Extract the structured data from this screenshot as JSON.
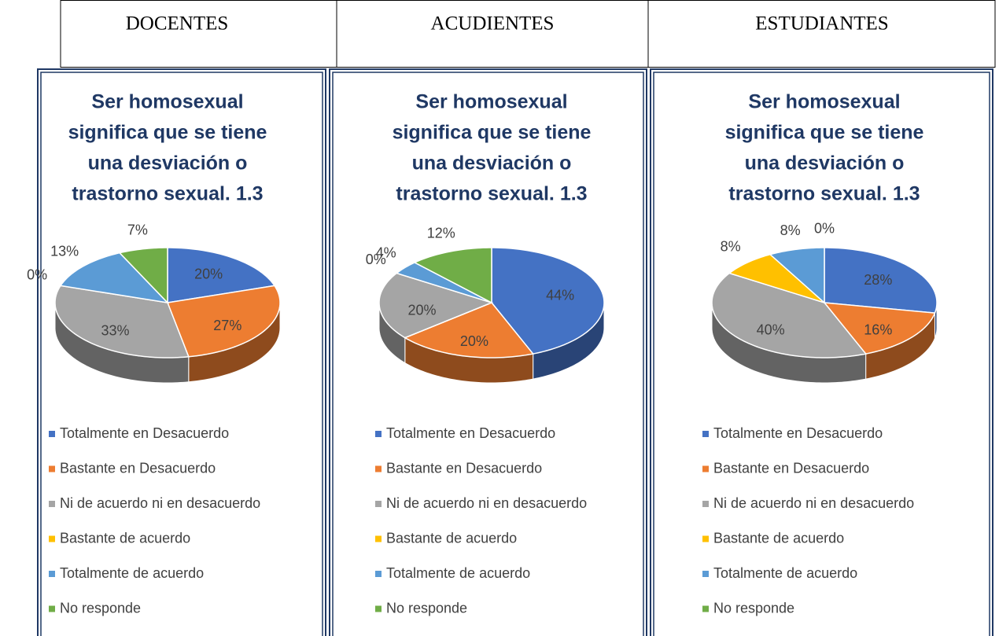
{
  "headers": [
    "DOCENTES",
    "ACUDIENTES",
    "ESTUDIANTES"
  ],
  "chart_data": [
    {
      "type": "pie",
      "title": [
        "Ser homosexual",
        "significa que se tiene",
        "una desviación  o",
        "trastorno sexual. 1.3"
      ],
      "categories": [
        "Totalmente en Desacuerdo",
        "Bastante en Desacuerdo",
        "Ni de acuerdo ni en desacuerdo",
        "Bastante de acuerdo",
        "Totalmente de acuerdo",
        "No responde"
      ],
      "values": [
        20,
        27,
        33,
        0,
        13,
        7
      ],
      "value_labels": [
        "20%",
        "27%",
        "33%",
        "0%",
        "13%",
        "7%"
      ],
      "colors": [
        "#4472c4",
        "#ed7d31",
        "#a5a5a5",
        "#ffc000",
        "#5b9bd5",
        "#70ad47"
      ]
    },
    {
      "type": "pie",
      "title": [
        "Ser homosexual",
        "significa que se tiene",
        "una desviación  o",
        "trastorno sexual. 1.3"
      ],
      "categories": [
        "Totalmente en Desacuerdo",
        "Bastante en Desacuerdo",
        "Ni de acuerdo ni en desacuerdo",
        "Bastante de acuerdo",
        "Totalmente de acuerdo",
        "No responde"
      ],
      "values": [
        44,
        20,
        20,
        0,
        4,
        12
      ],
      "value_labels": [
        "44%",
        "20%",
        "20%",
        "0%",
        "4%",
        "12%"
      ],
      "colors": [
        "#4472c4",
        "#ed7d31",
        "#a5a5a5",
        "#ffc000",
        "#5b9bd5",
        "#70ad47"
      ]
    },
    {
      "type": "pie",
      "title": [
        "Ser homosexual",
        "significa que se tiene",
        "una desviación  o",
        "trastorno sexual. 1.3"
      ],
      "categories": [
        "Totalmente en Desacuerdo",
        "Bastante en Desacuerdo",
        "Ni de acuerdo ni en desacuerdo",
        "Bastante de acuerdo",
        "Totalmente de acuerdo",
        "No responde"
      ],
      "values": [
        28,
        16,
        40,
        8,
        8,
        0
      ],
      "value_labels": [
        "28%",
        "16%",
        "40%",
        "8%",
        "8%",
        "0%"
      ],
      "colors": [
        "#4472c4",
        "#ed7d31",
        "#a5a5a5",
        "#ffc000",
        "#5b9bd5",
        "#70ad47"
      ]
    }
  ]
}
